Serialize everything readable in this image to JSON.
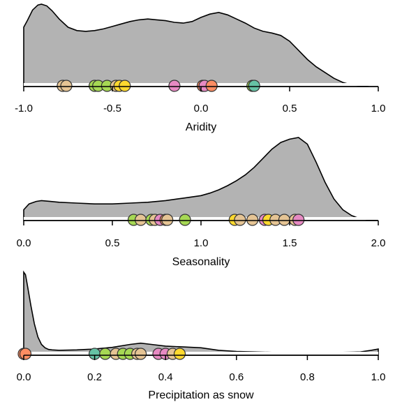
{
  "chart_data": [
    {
      "type": "density-strip",
      "xlabel": "Aridity",
      "xlim": [
        -1.0,
        1.0
      ],
      "ticks": [
        -1.0,
        -0.5,
        0.0,
        0.5,
        1.0
      ],
      "tick_labels": [
        "-1.0",
        "-0.5",
        "0.0",
        "0.5",
        "1.0"
      ],
      "density": {
        "x": [
          -1.0,
          -0.98,
          -0.95,
          -0.92,
          -0.9,
          -0.87,
          -0.84,
          -0.8,
          -0.75,
          -0.7,
          -0.65,
          -0.6,
          -0.55,
          -0.5,
          -0.45,
          -0.4,
          -0.35,
          -0.3,
          -0.25,
          -0.2,
          -0.15,
          -0.1,
          -0.05,
          0.0,
          0.05,
          0.1,
          0.15,
          0.2,
          0.25,
          0.3,
          0.35,
          0.4,
          0.45,
          0.5,
          0.55,
          0.6,
          0.65,
          0.7,
          0.75,
          0.8,
          0.85,
          0.9,
          0.95,
          1.0
        ],
        "y": [
          0.72,
          0.8,
          0.93,
          0.99,
          1.0,
          0.98,
          0.92,
          0.82,
          0.72,
          0.68,
          0.67,
          0.68,
          0.7,
          0.73,
          0.76,
          0.79,
          0.81,
          0.82,
          0.81,
          0.8,
          0.78,
          0.77,
          0.79,
          0.84,
          0.88,
          0.9,
          0.87,
          0.82,
          0.77,
          0.71,
          0.67,
          0.65,
          0.62,
          0.55,
          0.44,
          0.33,
          0.24,
          0.17,
          0.1,
          0.05,
          0.02,
          0.01,
          0.0,
          0.0
        ]
      },
      "points": [
        {
          "x": -0.78,
          "color": "#e5c494"
        },
        {
          "x": -0.76,
          "color": "#e5c494"
        },
        {
          "x": -0.6,
          "color": "#a6d854"
        },
        {
          "x": -0.58,
          "color": "#a6d854"
        },
        {
          "x": -0.53,
          "color": "#a6d854"
        },
        {
          "x": -0.48,
          "color": "#e5c494"
        },
        {
          "x": -0.46,
          "color": "#ffd92f"
        },
        {
          "x": -0.43,
          "color": "#ffd92f"
        },
        {
          "x": -0.15,
          "color": "#e78ac3"
        },
        {
          "x": 0.01,
          "color": "#fc8d62"
        },
        {
          "x": 0.02,
          "color": "#e78ac3"
        },
        {
          "x": 0.06,
          "color": "#fc8d62"
        },
        {
          "x": 0.29,
          "color": "#a6d854"
        },
        {
          "x": 0.3,
          "color": "#66c2a5"
        }
      ]
    },
    {
      "type": "density-strip",
      "xlabel": "Seasonality",
      "xlim": [
        0.0,
        2.0
      ],
      "ticks": [
        0.0,
        0.5,
        1.0,
        1.5,
        2.0
      ],
      "tick_labels": [
        "0.0",
        "0.5",
        "1.0",
        "1.5",
        "2.0"
      ],
      "density": {
        "x": [
          0.0,
          0.03,
          0.07,
          0.1,
          0.15,
          0.2,
          0.3,
          0.4,
          0.5,
          0.6,
          0.7,
          0.8,
          0.9,
          1.0,
          1.05,
          1.1,
          1.15,
          1.2,
          1.25,
          1.3,
          1.35,
          1.4,
          1.45,
          1.5,
          1.55,
          1.6,
          1.65,
          1.7,
          1.75,
          1.8,
          1.85,
          1.9,
          1.95,
          2.0
        ],
        "y": [
          0.13,
          0.2,
          0.23,
          0.24,
          0.23,
          0.22,
          0.21,
          0.2,
          0.2,
          0.21,
          0.22,
          0.24,
          0.27,
          0.3,
          0.33,
          0.37,
          0.42,
          0.48,
          0.55,
          0.64,
          0.75,
          0.86,
          0.94,
          0.98,
          1.0,
          0.92,
          0.7,
          0.46,
          0.26,
          0.13,
          0.06,
          0.02,
          0.01,
          0.0
        ]
      },
      "points": [
        {
          "x": 0.62,
          "color": "#a6d854"
        },
        {
          "x": 0.66,
          "color": "#e5c494"
        },
        {
          "x": 0.72,
          "color": "#a6d854"
        },
        {
          "x": 0.74,
          "color": "#e5c494"
        },
        {
          "x": 0.77,
          "color": "#e78ac3"
        },
        {
          "x": 0.8,
          "color": "#fc8d62"
        },
        {
          "x": 0.81,
          "color": "#e5c494"
        },
        {
          "x": 0.91,
          "color": "#a6d854"
        },
        {
          "x": 1.19,
          "color": "#ffd92f"
        },
        {
          "x": 1.22,
          "color": "#e5c494"
        },
        {
          "x": 1.29,
          "color": "#e5c494"
        },
        {
          "x": 1.36,
          "color": "#e78ac3"
        },
        {
          "x": 1.38,
          "color": "#ffd92f"
        },
        {
          "x": 1.42,
          "color": "#e5c494"
        },
        {
          "x": 1.47,
          "color": "#e5c494"
        },
        {
          "x": 1.53,
          "color": "#e5c494"
        },
        {
          "x": 1.55,
          "color": "#e78ac3"
        }
      ]
    },
    {
      "type": "density-strip",
      "xlabel": "Precipitation as snow",
      "xlim": [
        0.0,
        1.0
      ],
      "ticks": [
        0.0,
        0.2,
        0.4,
        0.6,
        0.8,
        1.0
      ],
      "tick_labels": [
        "0.0",
        "0.2",
        "0.4",
        "0.6",
        "0.8",
        "1.0"
      ],
      "density": {
        "x": [
          0.0,
          0.005,
          0.01,
          0.02,
          0.03,
          0.04,
          0.05,
          0.06,
          0.07,
          0.08,
          0.1,
          0.15,
          0.2,
          0.25,
          0.3,
          0.33,
          0.36,
          0.4,
          0.45,
          0.5,
          0.55,
          0.6,
          0.65,
          0.7,
          0.8,
          0.9,
          0.95,
          0.98,
          1.0
        ],
        "y": [
          1.0,
          0.97,
          0.85,
          0.6,
          0.38,
          0.22,
          0.13,
          0.09,
          0.07,
          0.065,
          0.06,
          0.065,
          0.075,
          0.095,
          0.13,
          0.145,
          0.13,
          0.11,
          0.1,
          0.09,
          0.06,
          0.045,
          0.04,
          0.035,
          0.035,
          0.035,
          0.04,
          0.06,
          0.075
        ]
      },
      "points": [
        {
          "x": 0.0,
          "color": "#fc8d62"
        },
        {
          "x": 0.005,
          "color": "#fc8d62"
        },
        {
          "x": 0.2,
          "color": "#66c2a5"
        },
        {
          "x": 0.23,
          "color": "#a6d854"
        },
        {
          "x": 0.26,
          "color": "#e5c494"
        },
        {
          "x": 0.28,
          "color": "#a6d854"
        },
        {
          "x": 0.3,
          "color": "#a6d854"
        },
        {
          "x": 0.32,
          "color": "#e5c494"
        },
        {
          "x": 0.33,
          "color": "#e5c494"
        },
        {
          "x": 0.38,
          "color": "#e78ac3"
        },
        {
          "x": 0.4,
          "color": "#e78ac3"
        },
        {
          "x": 0.42,
          "color": "#e5c494"
        },
        {
          "x": 0.44,
          "color": "#ffd92f"
        }
      ]
    }
  ]
}
